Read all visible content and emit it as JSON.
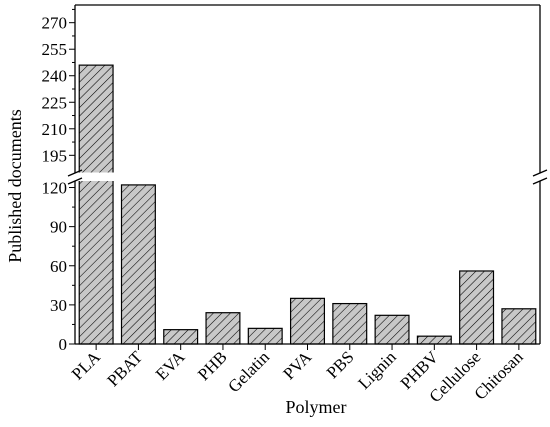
{
  "chart_data": {
    "type": "bar",
    "title": "",
    "xlabel": "Polymer",
    "ylabel": "Published documents",
    "categories": [
      "PLA",
      "PBAT",
      "EVA",
      "PHB",
      "Gelatin",
      "PVA",
      "PBS",
      "Lignin",
      "PHBV",
      "Cellulose",
      "Chitosan"
    ],
    "values": [
      246,
      122,
      11,
      24,
      12,
      35,
      31,
      22,
      6,
      56,
      27
    ],
    "y_axis_break": [
      125,
      185
    ],
    "lower_segment": {
      "ylim": [
        0,
        125
      ],
      "ticks": [
        0,
        30,
        60,
        90,
        120
      ]
    },
    "upper_segment": {
      "ylim": [
        185,
        280
      ],
      "ticks": [
        195,
        210,
        225,
        240,
        255,
        270
      ]
    },
    "grid": false,
    "legend": "none",
    "bar_fill": "#c8c8c8",
    "bar_pattern": "diagonal-hatch",
    "bar_stroke": "#000000"
  }
}
